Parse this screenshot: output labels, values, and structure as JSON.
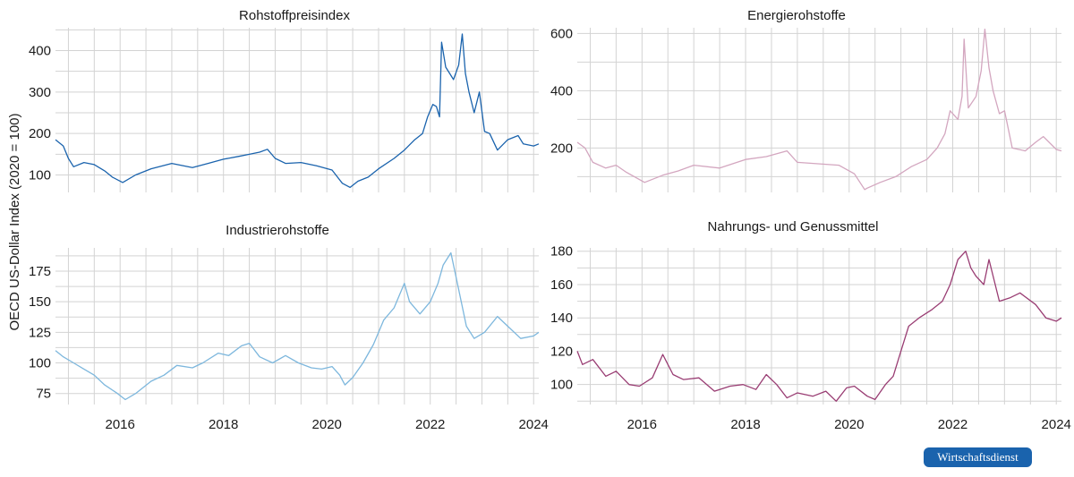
{
  "figure": {
    "ylabel": "OECD US-Dollar Index (2020 = 100)",
    "badge_text": "Wirtschaftsdienst"
  },
  "chart_data": [
    {
      "type": "line",
      "title": "Rohstoffpreisindex",
      "color": "#1a63ad",
      "xlim": [
        2014.75,
        2024.1
      ],
      "ylim": [
        58,
        455
      ],
      "yticks": [
        100,
        200,
        300,
        400
      ],
      "xticks": [
        2016,
        2018,
        2020,
        2022,
        2024
      ],
      "show_x_labels": false,
      "grid": true,
      "series": [
        {
          "x": [
            2014.75,
            2014.9,
            2015.0,
            2015.1,
            2015.3,
            2015.5,
            2015.7,
            2015.85,
            2016.05,
            2016.3,
            2016.6,
            2017.0,
            2017.4,
            2017.7,
            2018.0,
            2018.3,
            2018.5,
            2018.7,
            2018.85,
            2019.0,
            2019.2,
            2019.5,
            2019.8,
            2020.1,
            2020.3,
            2020.45,
            2020.6,
            2020.8,
            2021.0,
            2021.3,
            2021.5,
            2021.7,
            2021.85,
            2021.95,
            2022.05,
            2022.12,
            2022.18,
            2022.22,
            2022.3,
            2022.45,
            2022.55,
            2022.62,
            2022.68,
            2022.75,
            2022.85,
            2022.95,
            2023.05,
            2023.15,
            2023.3,
            2023.5,
            2023.7,
            2023.8,
            2024.0,
            2024.1
          ],
          "y": [
            185,
            170,
            140,
            120,
            130,
            125,
            110,
            95,
            82,
            100,
            115,
            128,
            118,
            128,
            138,
            145,
            150,
            155,
            162,
            140,
            128,
            130,
            122,
            112,
            80,
            70,
            85,
            95,
            115,
            140,
            160,
            185,
            200,
            240,
            270,
            265,
            240,
            420,
            360,
            330,
            365,
            440,
            345,
            300,
            250,
            300,
            205,
            200,
            160,
            185,
            195,
            175,
            170,
            175
          ]
        }
      ]
    },
    {
      "type": "line",
      "title": "Energierohstoffe",
      "color": "#d3a6bf",
      "xlim": [
        2014.75,
        2024.1
      ],
      "ylim": [
        45,
        620
      ],
      "yticks": [
        200,
        400,
        600
      ],
      "xticks": [
        2016,
        2018,
        2020,
        2022,
        2024
      ],
      "show_x_labels": false,
      "grid": true,
      "series": [
        {
          "x": [
            2014.75,
            2014.9,
            2015.05,
            2015.3,
            2015.5,
            2015.7,
            2016.05,
            2016.4,
            2016.7,
            2017.0,
            2017.5,
            2018.0,
            2018.4,
            2018.8,
            2019.0,
            2019.4,
            2019.8,
            2020.1,
            2020.3,
            2020.35,
            2020.6,
            2020.9,
            2021.2,
            2021.5,
            2021.7,
            2021.85,
            2021.95,
            2022.1,
            2022.18,
            2022.22,
            2022.3,
            2022.45,
            2022.55,
            2022.62,
            2022.7,
            2022.78,
            2022.9,
            2023.0,
            2023.15,
            2023.4,
            2023.6,
            2023.75,
            2024.0,
            2024.1
          ],
          "y": [
            220,
            200,
            150,
            130,
            140,
            115,
            80,
            105,
            120,
            140,
            130,
            160,
            170,
            190,
            150,
            145,
            140,
            110,
            55,
            60,
            80,
            100,
            135,
            160,
            200,
            250,
            330,
            300,
            380,
            580,
            340,
            380,
            470,
            615,
            480,
            400,
            320,
            330,
            200,
            190,
            220,
            240,
            195,
            190
          ]
        }
      ]
    },
    {
      "type": "line",
      "title": "Industrierohstoffe",
      "color": "#7db7dd",
      "xlim": [
        2014.75,
        2024.1
      ],
      "ylim": [
        66,
        194
      ],
      "yticks": [
        75,
        100,
        125,
        150,
        175
      ],
      "xticks": [
        2016,
        2018,
        2020,
        2022,
        2024
      ],
      "show_x_labels": true,
      "grid": true,
      "series": [
        {
          "x": [
            2014.75,
            2014.9,
            2015.1,
            2015.3,
            2015.5,
            2015.7,
            2015.95,
            2016.1,
            2016.3,
            2016.6,
            2016.85,
            2017.1,
            2017.4,
            2017.6,
            2017.9,
            2018.1,
            2018.35,
            2018.5,
            2018.7,
            2018.95,
            2019.2,
            2019.45,
            2019.7,
            2019.9,
            2020.1,
            2020.25,
            2020.35,
            2020.5,
            2020.7,
            2020.9,
            2021.1,
            2021.3,
            2021.5,
            2021.6,
            2021.8,
            2022.0,
            2022.15,
            2022.25,
            2022.4,
            2022.55,
            2022.7,
            2022.85,
            2023.05,
            2023.3,
            2023.5,
            2023.75,
            2024.0,
            2024.1
          ],
          "y": [
            110,
            105,
            100,
            95,
            90,
            82,
            75,
            70,
            75,
            85,
            90,
            98,
            96,
            100,
            108,
            106,
            114,
            116,
            105,
            100,
            106,
            100,
            96,
            95,
            97,
            90,
            82,
            88,
            100,
            115,
            135,
            145,
            165,
            150,
            140,
            150,
            165,
            180,
            190,
            160,
            130,
            120,
            125,
            138,
            130,
            120,
            122,
            125
          ]
        }
      ]
    },
    {
      "type": "line",
      "title": "Nahrungs- und Genussmittel",
      "color": "#993d73",
      "xlim": [
        2014.75,
        2024.1
      ],
      "ylim": [
        88,
        182
      ],
      "yticks": [
        100,
        120,
        140,
        160,
        180
      ],
      "xticks": [
        2016,
        2018,
        2020,
        2022,
        2024
      ],
      "show_x_labels": true,
      "grid": true,
      "series": [
        {
          "x": [
            2014.75,
            2014.85,
            2015.05,
            2015.3,
            2015.5,
            2015.75,
            2015.95,
            2016.2,
            2016.4,
            2016.6,
            2016.8,
            2017.1,
            2017.4,
            2017.7,
            2017.95,
            2018.2,
            2018.4,
            2018.6,
            2018.8,
            2019.0,
            2019.3,
            2019.55,
            2019.75,
            2019.95,
            2020.1,
            2020.35,
            2020.5,
            2020.7,
            2020.85,
            2021.0,
            2021.15,
            2021.35,
            2021.6,
            2021.8,
            2021.95,
            2022.1,
            2022.25,
            2022.35,
            2022.45,
            2022.6,
            2022.7,
            2022.9,
            2023.1,
            2023.3,
            2023.6,
            2023.8,
            2024.0,
            2024.1
          ],
          "y": [
            120,
            112,
            115,
            105,
            108,
            100,
            99,
            104,
            118,
            106,
            103,
            104,
            96,
            99,
            100,
            97,
            106,
            100,
            92,
            95,
            93,
            96,
            90,
            98,
            99,
            93,
            91,
            100,
            105,
            120,
            135,
            140,
            145,
            150,
            160,
            175,
            180,
            170,
            165,
            160,
            175,
            150,
            152,
            155,
            148,
            140,
            138,
            140
          ]
        }
      ]
    }
  ]
}
